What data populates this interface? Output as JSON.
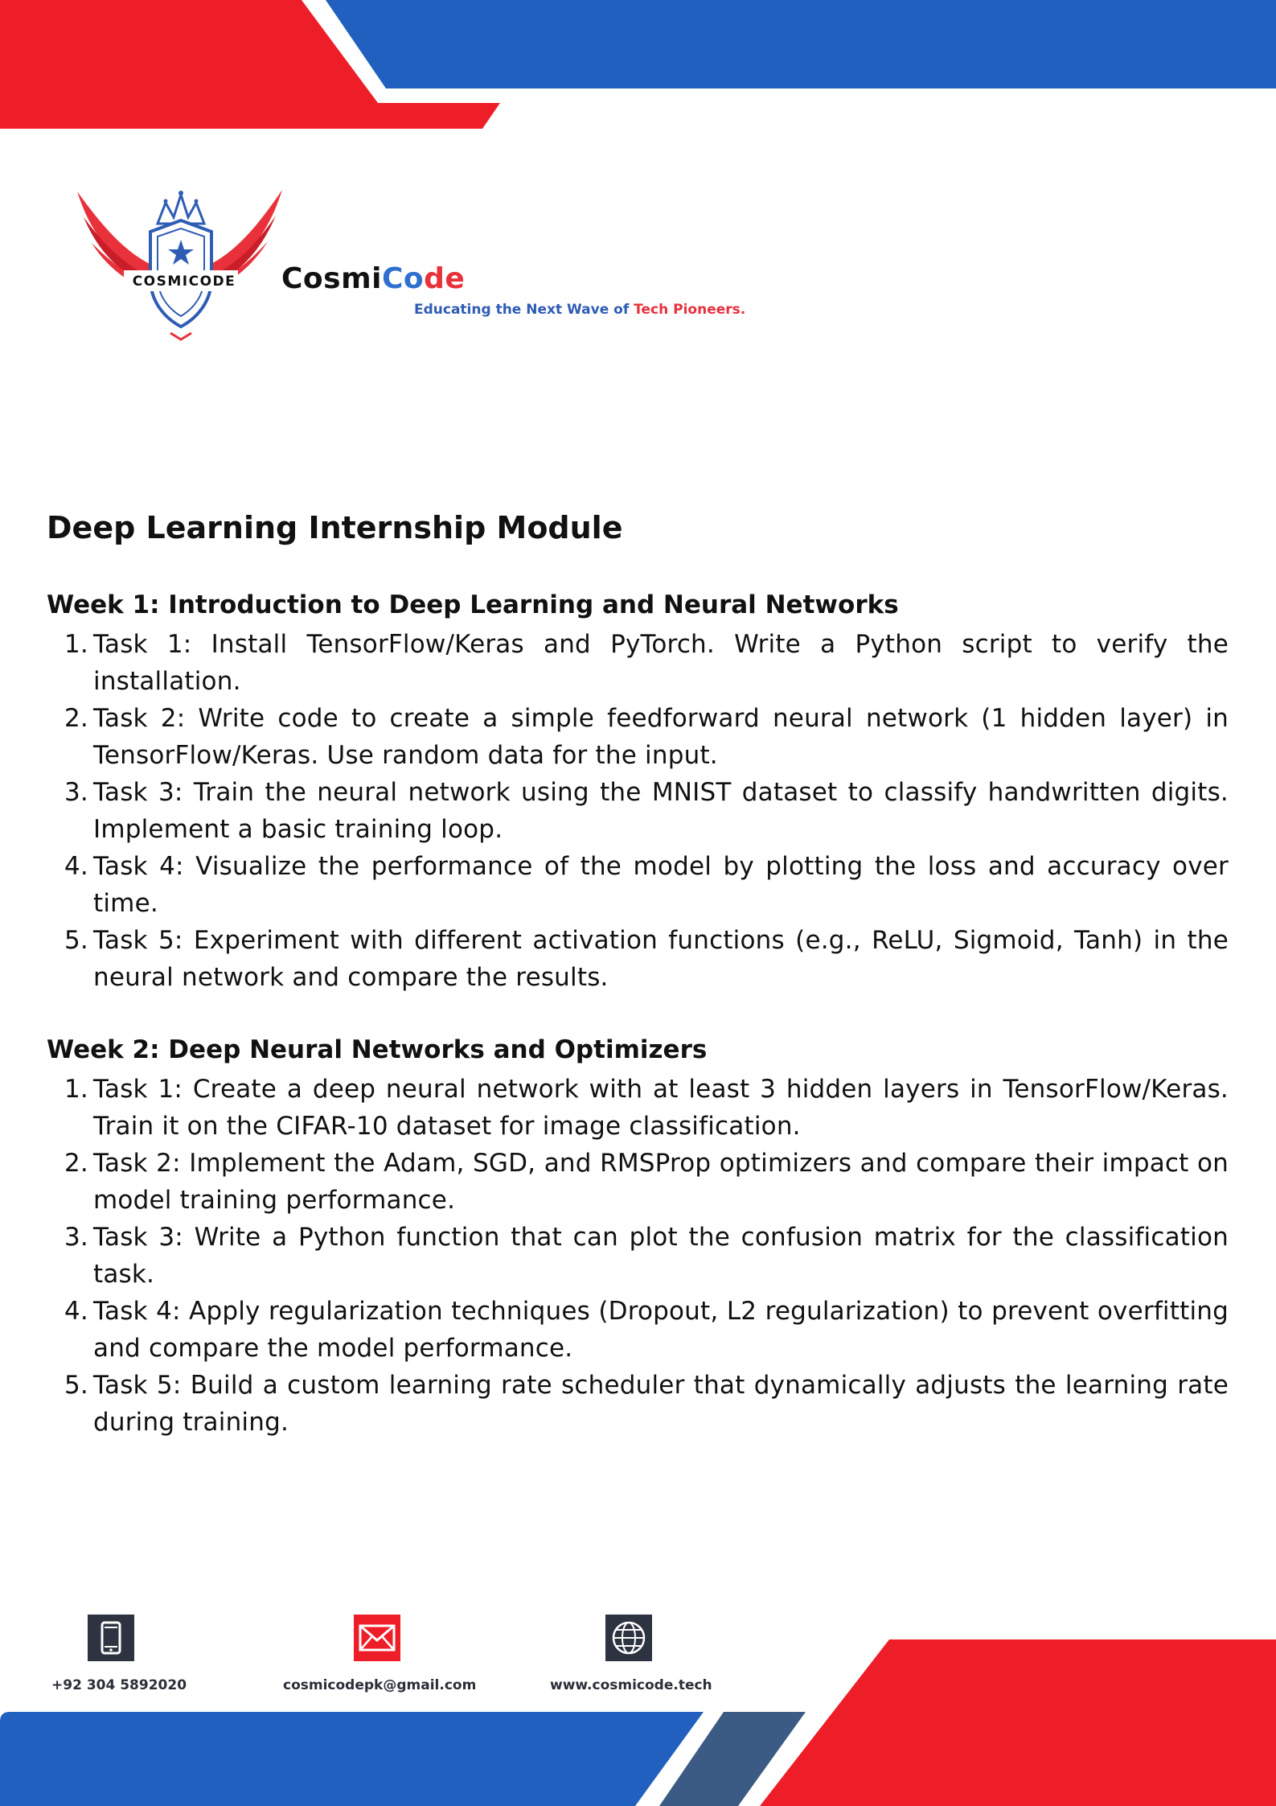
{
  "brand": {
    "logo_text": "COSMICODE",
    "name_part1": "Cosmi",
    "name_part2": "Co",
    "name_part3": "de",
    "tagline_part1": "Educating the Next Wave of ",
    "tagline_part2": "Tech Pioneers."
  },
  "document": {
    "title": "Deep Learning Internship Module",
    "weeks": [
      {
        "title": "Week 1: Introduction to Deep Learning and Neural Networks",
        "tasks": [
          {
            "num": "1.",
            "text": "Task 1: Install TensorFlow/Keras and PyTorch. Write a Python script to verify the installation."
          },
          {
            "num": "2.",
            "text": "Task 2: Write code to create a simple feedforward neural network (1 hidden layer) in TensorFlow/Keras. Use random data for the input."
          },
          {
            "num": "3.",
            "text": "Task 3: Train the neural network using the MNIST dataset to classify handwritten digits. Implement a basic training loop."
          },
          {
            "num": "4.",
            "text": "Task 4: Visualize the performance of the model by plotting the loss and accuracy over time."
          },
          {
            "num": "5.",
            "text": "Task 5: Experiment with different activation functions (e.g., ReLU, Sigmoid, Tanh) in the neural network and compare the results."
          }
        ]
      },
      {
        "title": "Week 2: Deep Neural Networks and Optimizers",
        "tasks": [
          {
            "num": "1.",
            "text": "Task 1: Create a deep neural network with at least 3 hidden layers in TensorFlow/Keras. Train it on the CIFAR-10 dataset for image classification."
          },
          {
            "num": "2.",
            "text": "Task 2: Implement the Adam, SGD, and RMSProp optimizers and compare their impact on model training performance."
          },
          {
            "num": "3.",
            "text": "Task 3: Write a Python function that can plot the confusion matrix for the classification task."
          },
          {
            "num": "4.",
            "text": "Task 4: Apply regularization techniques (Dropout, L2 regularization) to prevent overfitting and compare the model performance."
          },
          {
            "num": "5.",
            "text": "Task 5: Build a custom learning rate scheduler that dynamically adjusts the learning rate during training."
          }
        ]
      }
    ]
  },
  "contact": {
    "phone": "+92 304 5892020",
    "email": "cosmicodepk@gmail.com",
    "website": "www.cosmicode.tech",
    "phone_icon": "phone-icon",
    "email_icon": "mail-icon",
    "website_icon": "globe-icon"
  },
  "colors": {
    "brand_red": "#ee1e28",
    "brand_blue": "#2160be",
    "slate_blue": "#3b5b84",
    "icon_dark": "#2d3340"
  }
}
